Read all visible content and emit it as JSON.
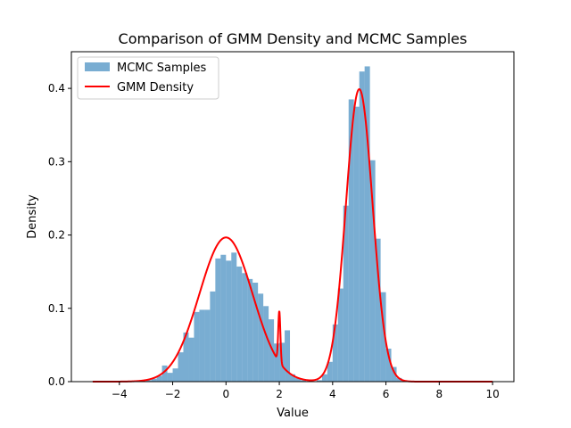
{
  "chart_data": {
    "type": "histogram+line",
    "title": "Comparison of GMM Density and MCMC Samples",
    "xlabel": "Value",
    "ylabel": "Density",
    "xlim": [
      -5.8,
      10.8
    ],
    "ylim": [
      0,
      0.45
    ],
    "xticks": [
      -4,
      -2,
      0,
      2,
      4,
      6,
      8,
      10
    ],
    "yticks": [
      0.0,
      0.1,
      0.2,
      0.3,
      0.4
    ],
    "xtick_labels": [
      "−4",
      "−2",
      "0",
      "2",
      "4",
      "6",
      "8",
      "10"
    ],
    "ytick_labels": [
      "0.0",
      "0.1",
      "0.2",
      "0.3",
      "0.4"
    ],
    "legend_position": "upper-left",
    "grid": false,
    "series": [
      {
        "name": "MCMC Samples",
        "kind": "histogram",
        "color": "#1f77b4",
        "opacity": 0.6,
        "bin_width": 0.2,
        "bins": [
          [
            -2.9,
            0.002
          ],
          [
            -2.7,
            0.004
          ],
          [
            -2.5,
            0.008
          ],
          [
            -2.3,
            0.022
          ],
          [
            -2.1,
            0.012
          ],
          [
            -1.9,
            0.018
          ],
          [
            -1.7,
            0.04
          ],
          [
            -1.5,
            0.067
          ],
          [
            -1.3,
            0.06
          ],
          [
            -1.1,
            0.095
          ],
          [
            -0.9,
            0.098
          ],
          [
            -0.7,
            0.098
          ],
          [
            -0.5,
            0.123
          ],
          [
            -0.3,
            0.168
          ],
          [
            -0.1,
            0.173
          ],
          [
            0.1,
            0.165
          ],
          [
            0.3,
            0.176
          ],
          [
            0.5,
            0.157
          ],
          [
            0.7,
            0.148
          ],
          [
            0.9,
            0.14
          ],
          [
            1.1,
            0.135
          ],
          [
            1.3,
            0.12
          ],
          [
            1.5,
            0.103
          ],
          [
            1.7,
            0.085
          ],
          [
            1.9,
            0.052
          ],
          [
            2.1,
            0.053
          ],
          [
            2.3,
            0.07
          ],
          [
            2.5,
            0.01
          ],
          [
            2.7,
            0.005
          ],
          [
            2.9,
            0.002
          ],
          [
            3.5,
            0.002
          ],
          [
            3.7,
            0.01
          ],
          [
            3.9,
            0.027
          ],
          [
            4.1,
            0.078
          ],
          [
            4.3,
            0.127
          ],
          [
            4.5,
            0.24
          ],
          [
            4.7,
            0.385
          ],
          [
            4.9,
            0.375
          ],
          [
            5.1,
            0.423
          ],
          [
            5.3,
            0.43
          ],
          [
            5.5,
            0.302
          ],
          [
            5.7,
            0.195
          ],
          [
            5.9,
            0.122
          ],
          [
            6.1,
            0.045
          ],
          [
            6.3,
            0.02
          ],
          [
            6.5,
            0.005
          ]
        ]
      },
      {
        "name": "GMM Density",
        "kind": "line",
        "color": "#ff0000",
        "components": [
          {
            "weight": 0.493,
            "mean": 0.0,
            "sd": 1.0
          },
          {
            "weight": 0.5,
            "mean": 5.0,
            "sd": 0.5
          },
          {
            "weight": 0.007,
            "mean": 2.0,
            "sd": 0.04
          }
        ]
      }
    ]
  }
}
